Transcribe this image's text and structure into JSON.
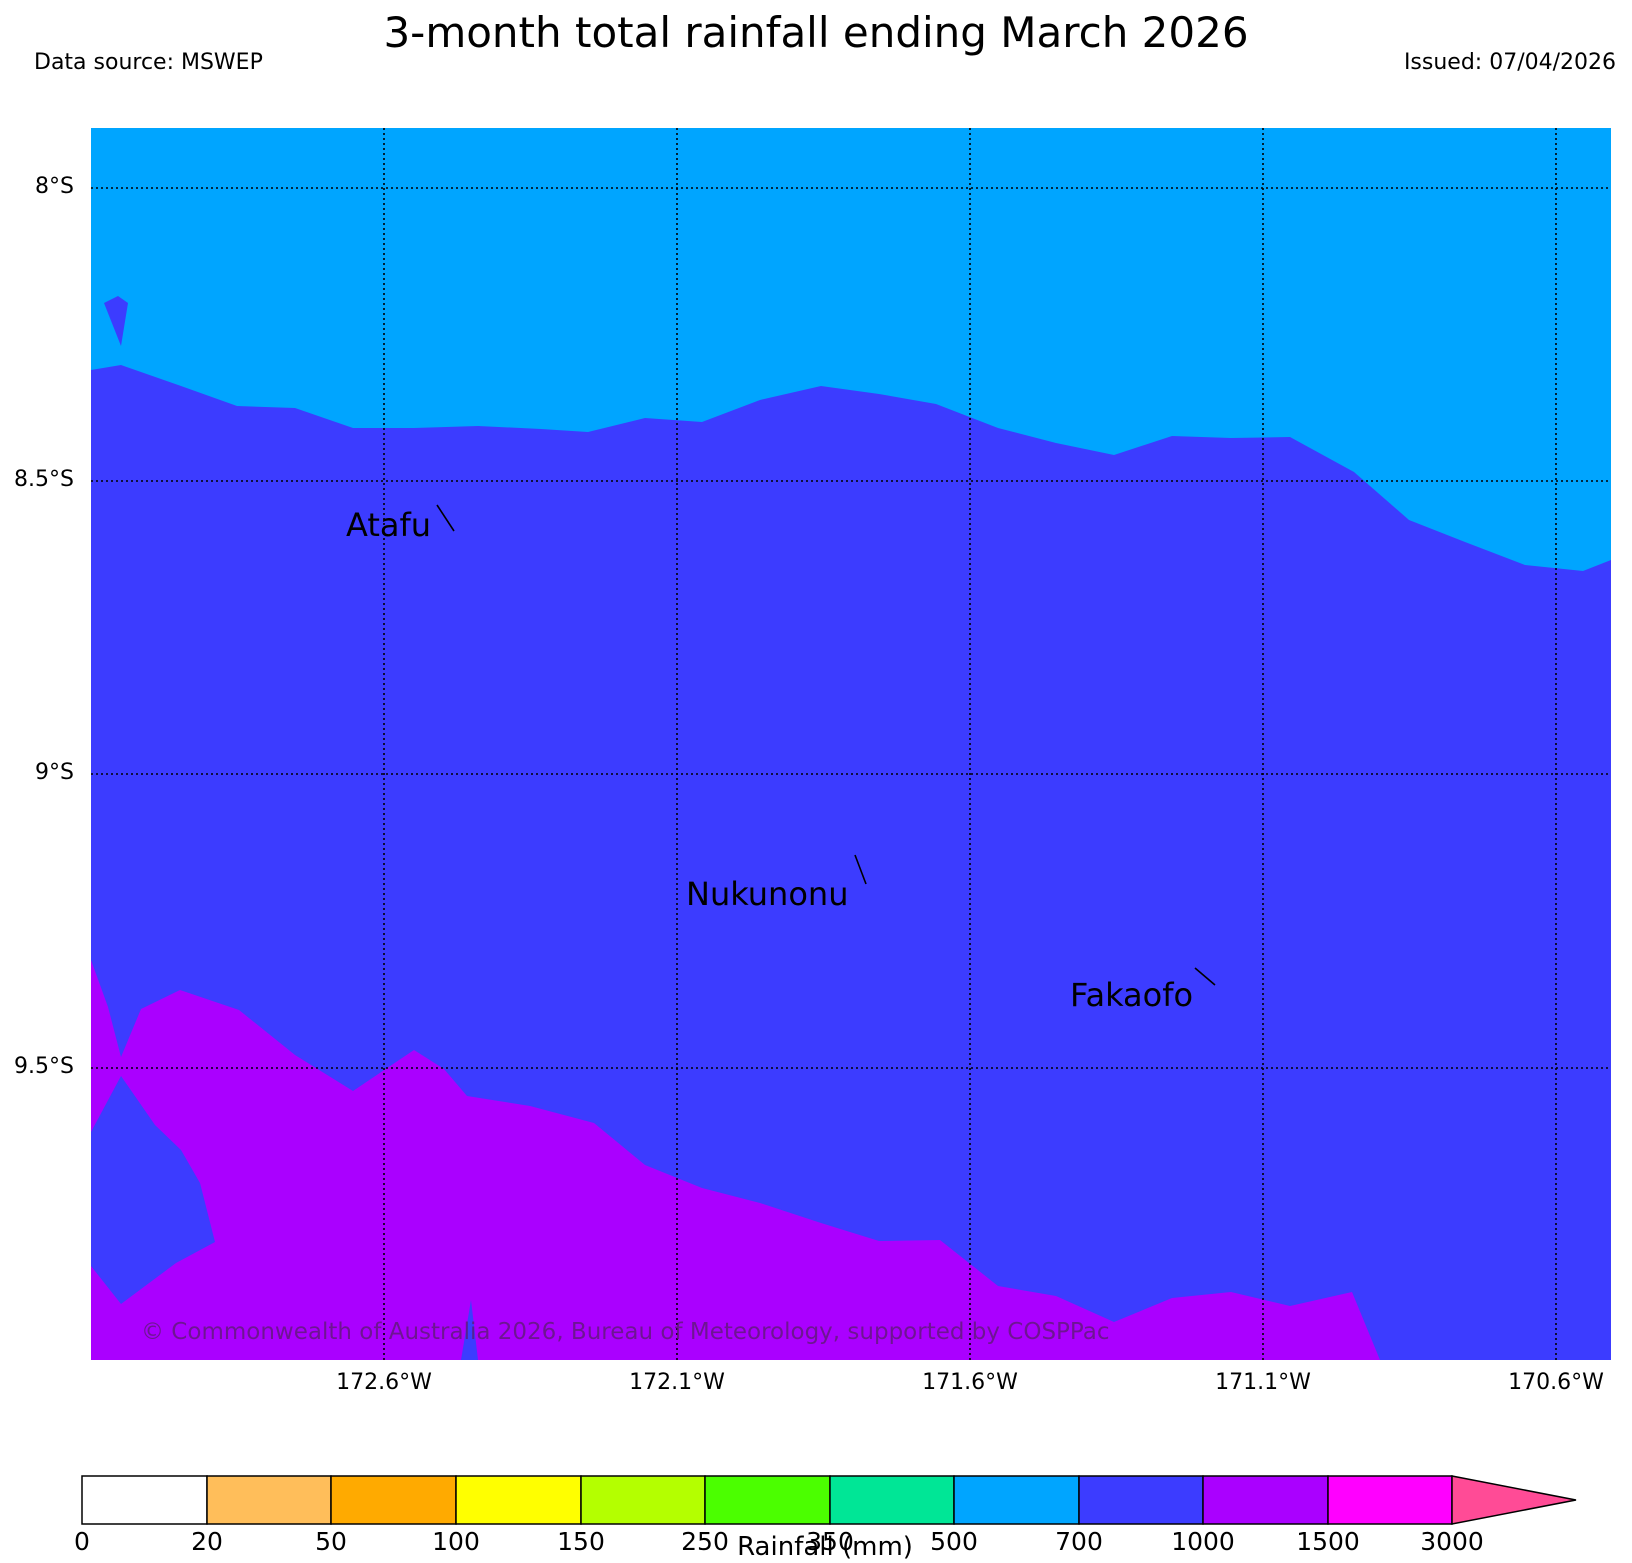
{
  "title": "3-month total rainfall ending March 2026",
  "data_source": "Data source: MSWEP",
  "issued": "Issued: 07/04/2026",
  "lat_labels": [
    "8°S",
    "8.5°S",
    "9°S",
    "9.5°S"
  ],
  "lon_labels": [
    "172.6°W",
    "172.1°W",
    "171.6°W",
    "171.1°W",
    "170.6°W"
  ],
  "places": [
    "Atafu",
    "Nukunonu",
    "Fakaofo"
  ],
  "copyright": "© Commonwealth of Australia 2026, Bureau of Meteorology, supported by COSPPac",
  "colorbar": {
    "label": "Rainfall (mm)",
    "ticks": [
      "0",
      "20",
      "50",
      "100",
      "150",
      "250",
      "350",
      "500",
      "700",
      "1000",
      "1500",
      "3000"
    ],
    "colors": [
      "#ffffff",
      "#ffbe5a",
      "#ffaa00",
      "#ffff00",
      "#b4ff00",
      "#4bff00",
      "#00e696",
      "#00a5ff",
      "#3c3cff",
      "#aa00ff",
      "#ff00ff"
    ],
    "extend_color": "#ff4b96"
  },
  "fill_colors": {
    "band_500_700": "#00a5ff",
    "band_700_1000": "#3c3cff",
    "band_1000_1500": "#aa00ff"
  }
}
